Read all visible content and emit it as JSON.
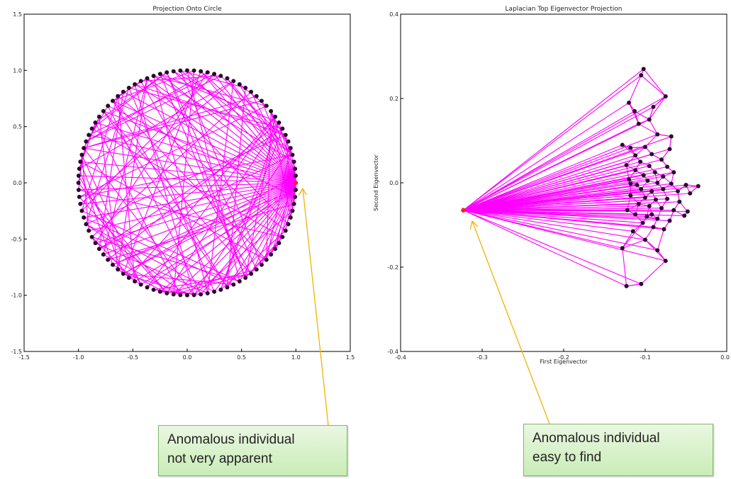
{
  "chart_data": [
    {
      "type": "scatter",
      "title": "Projection Onto Circle",
      "xlabel": "",
      "ylabel": "",
      "xlim": [
        -1.5,
        1.5
      ],
      "ylim": [
        -1.5,
        1.5
      ],
      "xticks": [
        "-1.5",
        "-1.0",
        "-0.5",
        "0.0",
        "0.5",
        "1.0",
        "1.5"
      ],
      "yticks": [
        "1.5",
        "1.0",
        "0.5",
        "0.0",
        "-0.5",
        "-1.0",
        "-1.5"
      ],
      "grid": false,
      "node_color": "#2b0a2b",
      "edge_color": "#ff00ff",
      "anomaly_color": "#ff2020",
      "nodes": "100 nodes evenly spaced on the unit circle",
      "anomaly_point": {
        "x": 1.0,
        "y": 0.0
      }
    },
    {
      "type": "scatter",
      "title": "Laplacian Top Eigenvector Projection",
      "xlabel": "First Eigenvector",
      "ylabel": "Second Eigenvector",
      "xlim": [
        -0.4,
        0.0
      ],
      "ylim": [
        -0.4,
        0.4
      ],
      "xticks": [
        "-0.4",
        "-0.3",
        "-0.2",
        "-0.1",
        "0.0"
      ],
      "yticks": [
        "0.4",
        "0.2",
        "0.0",
        "-0.2",
        "-0.4"
      ],
      "grid": false,
      "node_color": "#2b0a2b",
      "edge_color": "#ff00ff",
      "anomaly_color": "#ff2020",
      "anomaly_point": {
        "x": -0.323,
        "y": -0.065
      },
      "points": [
        {
          "x": -0.102,
          "y": 0.27
        },
        {
          "x": -0.105,
          "y": 0.255
        },
        {
          "x": -0.075,
          "y": 0.205
        },
        {
          "x": -0.12,
          "y": 0.19
        },
        {
          "x": -0.09,
          "y": 0.18
        },
        {
          "x": -0.113,
          "y": 0.17
        },
        {
          "x": -0.095,
          "y": 0.15
        },
        {
          "x": -0.108,
          "y": 0.14
        },
        {
          "x": -0.085,
          "y": 0.115
        },
        {
          "x": -0.068,
          "y": 0.11
        },
        {
          "x": -0.128,
          "y": 0.09
        },
        {
          "x": -0.118,
          "y": 0.083
        },
        {
          "x": -0.1,
          "y": 0.085
        },
        {
          "x": -0.07,
          "y": 0.08
        },
        {
          "x": -0.112,
          "y": 0.065
        },
        {
          "x": -0.092,
          "y": 0.068
        },
        {
          "x": -0.08,
          "y": 0.055
        },
        {
          "x": -0.106,
          "y": 0.05
        },
        {
          "x": -0.123,
          "y": 0.042
        },
        {
          "x": -0.095,
          "y": 0.04
        },
        {
          "x": -0.073,
          "y": 0.038
        },
        {
          "x": -0.112,
          "y": 0.03
        },
        {
          "x": -0.088,
          "y": 0.025
        },
        {
          "x": -0.065,
          "y": 0.025
        },
        {
          "x": -0.102,
          "y": 0.018
        },
        {
          "x": -0.078,
          "y": 0.015
        },
        {
          "x": -0.12,
          "y": 0.008
        },
        {
          "x": -0.097,
          "y": 0.005
        },
        {
          "x": -0.085,
          "y": 0.0
        },
        {
          "x": -0.068,
          "y": -0.002
        },
        {
          "x": -0.05,
          "y": -0.005
        },
        {
          "x": -0.035,
          "y": -0.008
        },
        {
          "x": -0.11,
          "y": -0.005
        },
        {
          "x": -0.105,
          "y": -0.015
        },
        {
          "x": -0.092,
          "y": -0.02
        },
        {
          "x": -0.078,
          "y": -0.015
        },
        {
          "x": -0.06,
          "y": -0.02
        },
        {
          "x": -0.045,
          "y": -0.025
        },
        {
          "x": -0.118,
          "y": -0.03
        },
        {
          "x": -0.1,
          "y": -0.035
        },
        {
          "x": -0.087,
          "y": -0.04
        },
        {
          "x": -0.073,
          "y": -0.038
        },
        {
          "x": -0.058,
          "y": -0.045
        },
        {
          "x": -0.108,
          "y": -0.05
        },
        {
          "x": -0.095,
          "y": -0.055
        },
        {
          "x": -0.08,
          "y": -0.06
        },
        {
          "x": -0.065,
          "y": -0.065
        },
        {
          "x": -0.048,
          "y": -0.068
        },
        {
          "x": -0.122,
          "y": -0.065
        },
        {
          "x": -0.112,
          "y": -0.075
        },
        {
          "x": -0.098,
          "y": -0.08
        },
        {
          "x": -0.085,
          "y": -0.085
        },
        {
          "x": -0.07,
          "y": -0.09
        },
        {
          "x": -0.052,
          "y": -0.078
        },
        {
          "x": -0.103,
          "y": -0.095
        },
        {
          "x": -0.09,
          "y": -0.105
        },
        {
          "x": -0.077,
          "y": -0.11
        },
        {
          "x": -0.115,
          "y": -0.115
        },
        {
          "x": -0.128,
          "y": -0.155
        },
        {
          "x": -0.1,
          "y": -0.135
        },
        {
          "x": -0.085,
          "y": -0.16
        },
        {
          "x": -0.075,
          "y": -0.185
        },
        {
          "x": -0.105,
          "y": -0.24
        },
        {
          "x": -0.123,
          "y": -0.245
        },
        {
          "x": -0.092,
          "y": -0.075
        },
        {
          "x": -0.118,
          "y": -0.002
        }
      ]
    }
  ],
  "annotations": [
    {
      "lines": [
        "Anomalous individual",
        "not very  apparent"
      ]
    },
    {
      "lines": [
        "Anomalous individual",
        "easy to find"
      ]
    }
  ]
}
